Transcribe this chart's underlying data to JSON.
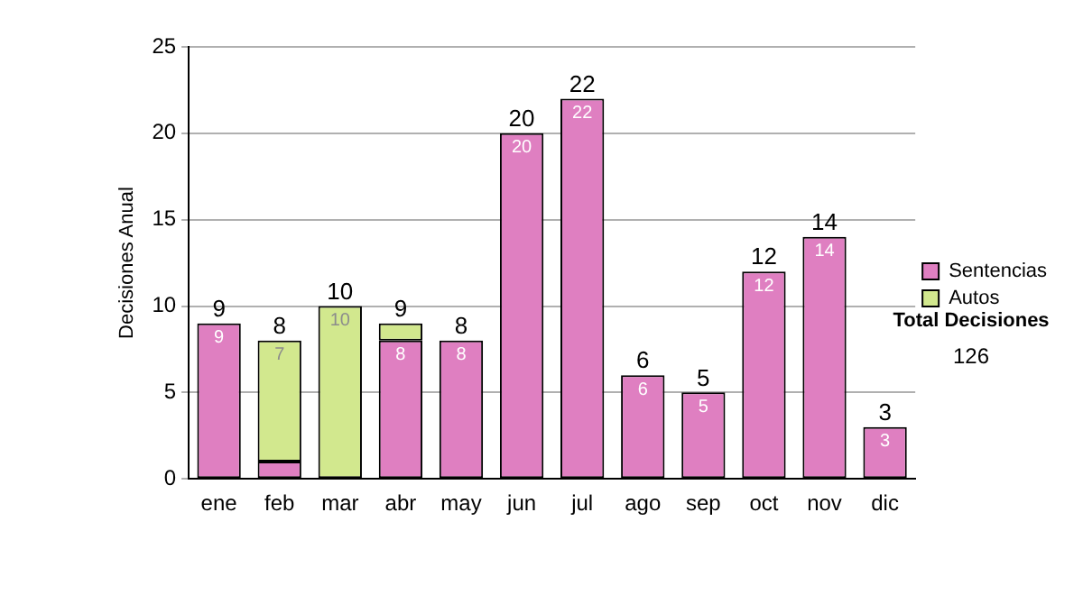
{
  "chart_data": {
    "type": "bar",
    "stacked": true,
    "ylabel": "Decisiones Anual",
    "categories": [
      "ene",
      "feb",
      "mar",
      "abr",
      "may",
      "jun",
      "jul",
      "ago",
      "sep",
      "oct",
      "nov",
      "dic"
    ],
    "series": [
      {
        "name": "Sentencias",
        "color": "#df7fc1",
        "values": [
          9,
          1,
          0,
          8,
          8,
          20,
          22,
          6,
          5,
          12,
          14,
          3
        ],
        "value_labels": [
          "9",
          null,
          null,
          "8",
          "8",
          "20",
          "22",
          "6",
          "5",
          "12",
          "14",
          "3"
        ]
      },
      {
        "name": "Autos",
        "color": "#d2e88e",
        "values": [
          0,
          7,
          10,
          1,
          0,
          0,
          0,
          0,
          0,
          0,
          0,
          0
        ],
        "value_labels": [
          null,
          "7",
          "10",
          null,
          null,
          null,
          null,
          null,
          null,
          null,
          null,
          null
        ]
      }
    ],
    "totals": [
      "9",
      "8",
      "10",
      "9",
      "8",
      "20",
      "22",
      "6",
      "5",
      "12",
      "14",
      "3"
    ],
    "ylim": [
      0,
      25
    ],
    "yticks": [
      0,
      5,
      10,
      15,
      20,
      25
    ],
    "grid": "y",
    "legend": "right",
    "annotations": [
      "Total Decisiones",
      "126"
    ]
  }
}
